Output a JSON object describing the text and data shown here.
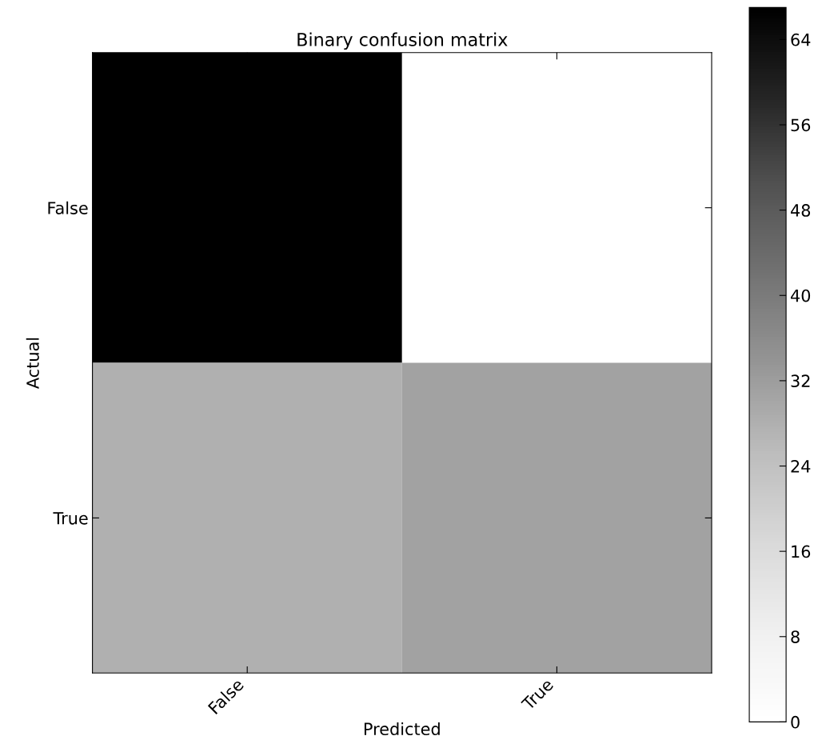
{
  "chart_data": {
    "type": "heatmap",
    "title": "Binary confusion matrix",
    "xlabel": "Predicted",
    "ylabel": "Actual",
    "categories": [
      "False",
      "True"
    ],
    "y_categories": [
      "False",
      "True"
    ],
    "cells": [
      [
        67,
        0
      ],
      [
        28,
        31
      ]
    ],
    "clim": [
      0,
      67
    ],
    "cticks": [
      0,
      8,
      16,
      24,
      32,
      40,
      48,
      56,
      64
    ],
    "grid": false
  }
}
